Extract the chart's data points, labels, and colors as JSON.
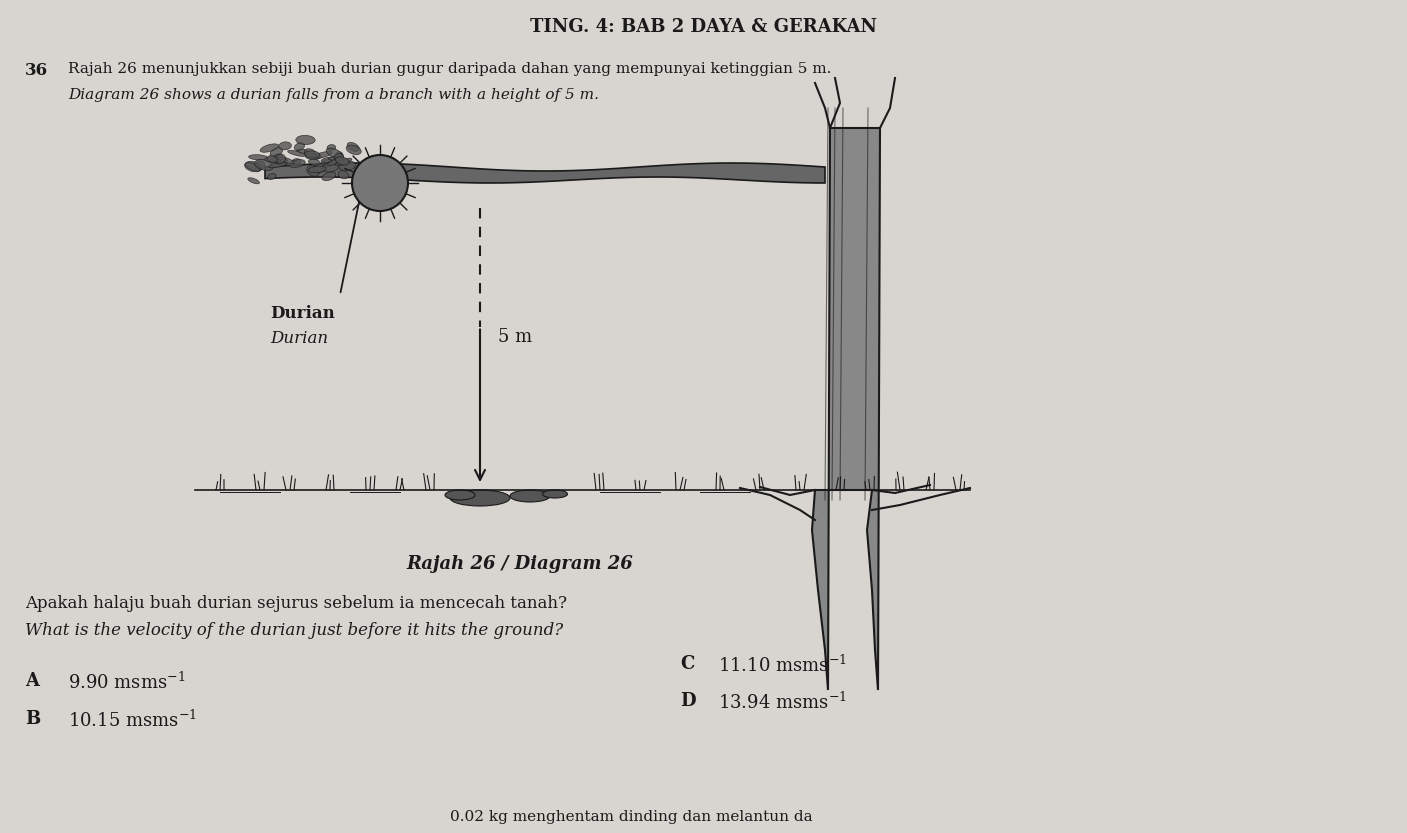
{
  "bg_color": "#d8d5d0",
  "text_color": "#1a1a1a",
  "header": "TING. 4: BAB 2 DAYA & GERAKAN",
  "q_number": "36",
  "q_malay": "Rajah 26 menunjukkan sebiji buah durian gugur daripada dahan yang mempunyai ketinggian 5 m.",
  "q_english": "Diagram 26 shows a durian falls from a branch with a height of 5 m.",
  "label_malay": "Durian",
  "label_english": "Durian",
  "height_label": "5 m",
  "diagram_caption": "Rajah 26 / Diagram 26",
  "q2_malay": "Apakah halaju buah durian sejurus sebelum ia mencecah tanah?",
  "q2_english": "What is the velocity of the durian just before it hits the ground?",
  "opt_A": "9.90 ms",
  "opt_B": "10.15 ms",
  "opt_C": "11.10 ms",
  "opt_D": "13.94 ms",
  "bottom": "0.02 kg menghentam dinding dan melantun da"
}
